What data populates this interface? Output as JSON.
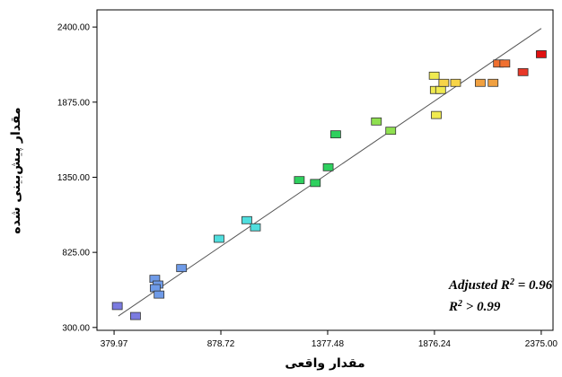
{
  "chart_data": {
    "type": "scatter",
    "xlabel": "مقدار واقعی",
    "ylabel": "مقدار پیش‌بینی شده",
    "xlim": [
      300,
      2430
    ],
    "ylim": [
      280,
      2520
    ],
    "x_ticks": [
      "379.97",
      "878.72",
      "1377.48",
      "1876.24",
      "2375.00"
    ],
    "y_ticks": [
      "300.00",
      "825.00",
      "1350.00",
      "1875.00",
      "2400.00"
    ],
    "x_tick_values": [
      379.97,
      878.72,
      1377.48,
      1876.24,
      2375.0
    ],
    "y_tick_values": [
      300,
      825,
      1350,
      1875,
      2400
    ],
    "grid": false,
    "annotation": {
      "line1_prefix": "Adjusted R",
      "line1_sup": "2",
      "line1_suffix": " = 0.96",
      "line2_prefix": "R",
      "line2_sup": "2",
      "line2_suffix": " > 0.99"
    },
    "fit_line": {
      "x": [
        400,
        2375
      ],
      "y": [
        380,
        2390
      ]
    },
    "points": [
      {
        "x": 395,
        "y": 450,
        "color": "#7b7be0"
      },
      {
        "x": 480,
        "y": 380,
        "color": "#7b7be0"
      },
      {
        "x": 570,
        "y": 640,
        "color": "#6f9be8"
      },
      {
        "x": 585,
        "y": 600,
        "color": "#6f9be8"
      },
      {
        "x": 572,
        "y": 575,
        "color": "#6f9be8"
      },
      {
        "x": 590,
        "y": 530,
        "color": "#6f9be8"
      },
      {
        "x": 695,
        "y": 715,
        "color": "#6f9be8"
      },
      {
        "x": 870,
        "y": 920,
        "color": "#4fdede"
      },
      {
        "x": 1000,
        "y": 1050,
        "color": "#4fdede"
      },
      {
        "x": 1040,
        "y": 1000,
        "color": "#4fdede"
      },
      {
        "x": 1245,
        "y": 1330,
        "color": "#2ed05e"
      },
      {
        "x": 1320,
        "y": 1310,
        "color": "#2ed05e"
      },
      {
        "x": 1380,
        "y": 1420,
        "color": "#2ed05e"
      },
      {
        "x": 1415,
        "y": 1650,
        "color": "#2ed05e"
      },
      {
        "x": 1605,
        "y": 1740,
        "color": "#8fe050"
      },
      {
        "x": 1672,
        "y": 1675,
        "color": "#8fe050"
      },
      {
        "x": 1885,
        "y": 1785,
        "color": "#f0ea50"
      },
      {
        "x": 1880,
        "y": 1960,
        "color": "#f0ea50"
      },
      {
        "x": 1905,
        "y": 1960,
        "color": "#f0ea50"
      },
      {
        "x": 1875,
        "y": 2060,
        "color": "#f0ea50"
      },
      {
        "x": 1920,
        "y": 2010,
        "color": "#f7d448"
      },
      {
        "x": 1975,
        "y": 2010,
        "color": "#f7d448"
      },
      {
        "x": 2090,
        "y": 2010,
        "color": "#f0a040"
      },
      {
        "x": 2150,
        "y": 2010,
        "color": "#f0a040"
      },
      {
        "x": 2175,
        "y": 2145,
        "color": "#f07030"
      },
      {
        "x": 2205,
        "y": 2145,
        "color": "#f07030"
      },
      {
        "x": 2290,
        "y": 2085,
        "color": "#e83828"
      },
      {
        "x": 2375,
        "y": 2210,
        "color": "#e01010"
      }
    ]
  }
}
